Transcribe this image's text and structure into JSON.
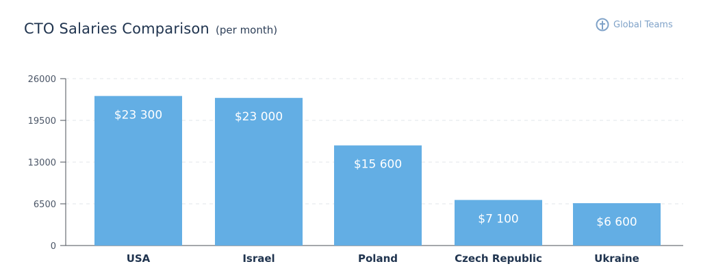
{
  "header": {
    "title": "CTO Salaries Comparison",
    "subtitle": "(per month)",
    "brand": "Global Teams",
    "brand_icon": "gt-logo-icon"
  },
  "colors": {
    "bar": "#63aee4",
    "title": "#20344f",
    "tick": "#4a5566",
    "grid": "#e2e4e8",
    "axis": "#4a4f57",
    "brand": "#7fa2c8"
  },
  "chart_data": {
    "type": "bar",
    "title": "CTO Salaries Comparison",
    "subtitle": "(per month)",
    "categories": [
      "USA",
      "Israel",
      "Poland",
      "Czech Republic",
      "Ukraine"
    ],
    "values": [
      23300,
      23000,
      15600,
      7100,
      6600
    ],
    "data_labels": [
      "$23 300",
      "$23 000",
      "$15 600",
      "$7 100",
      "$6 600"
    ],
    "yticks": [
      0,
      6500,
      13000,
      19500,
      26000
    ],
    "ytick_labels": [
      "0",
      "6500",
      "13000",
      "19500",
      "26000"
    ],
    "ylim": [
      0,
      26000
    ],
    "xlabel": "",
    "ylabel": "",
    "grid": true,
    "legend": "none"
  }
}
